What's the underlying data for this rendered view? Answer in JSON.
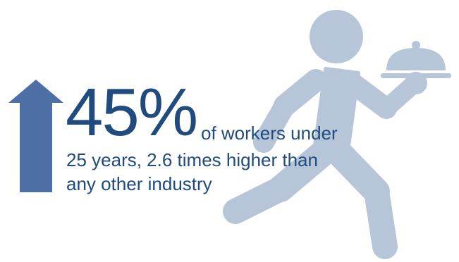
{
  "colors": {
    "primary": "#1f4b7e",
    "arrow": "#4e6ea6",
    "figure": "#b7c5d9"
  },
  "icons": {
    "arrow": "up-arrow-icon",
    "figure": "waiter-with-cloche-icon"
  },
  "stat": {
    "value": "45%",
    "line1": "of workers under",
    "line2": "25 years, 2.6 times higher than",
    "line3": "any other industry"
  }
}
